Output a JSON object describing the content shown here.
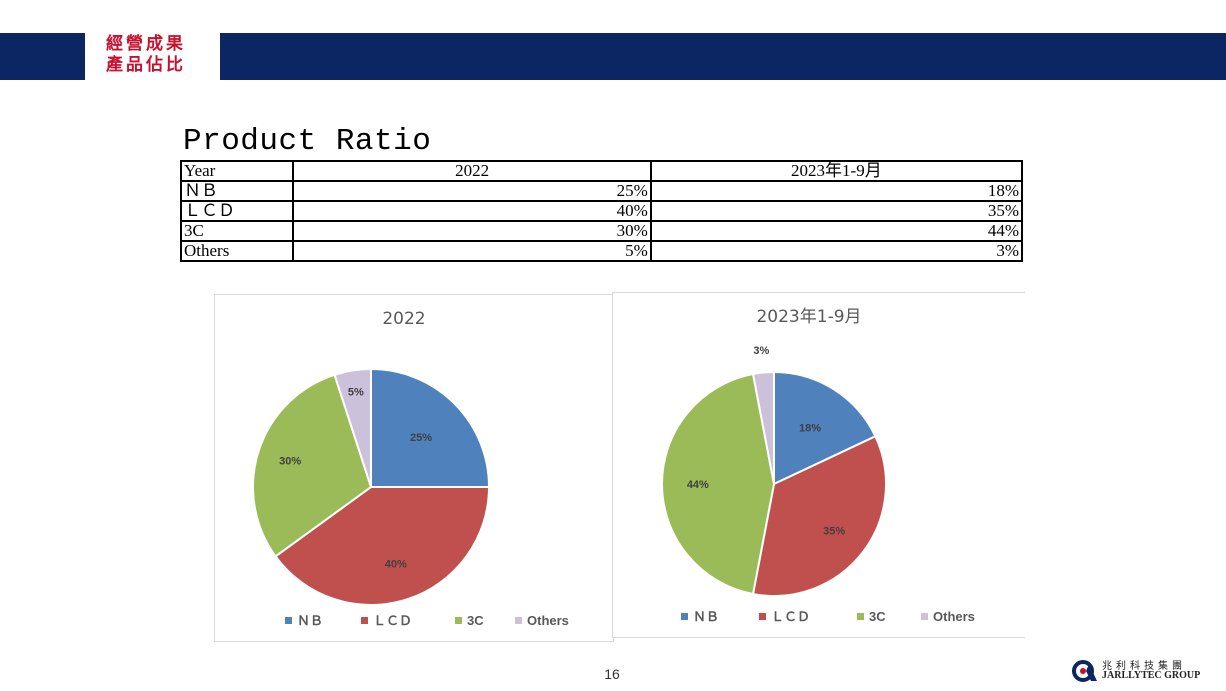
{
  "banner": {
    "line1": "經營成果",
    "line2": "產品佔比"
  },
  "heading": "Product  Ratio",
  "table": {
    "header": [
      "Year",
      "2022",
      "2023年1-9月"
    ],
    "rows": [
      [
        "ＮＢ",
        "25%",
        "18%"
      ],
      [
        "ＬＣＤ",
        "40%",
        "35%"
      ],
      [
        "3C",
        "30%",
        "44%"
      ],
      [
        "Others",
        "5%",
        "3%"
      ]
    ]
  },
  "colors": {
    "banner": "#0b2662",
    "banner_text": "#c8102e",
    "nb": "#4f81bd",
    "lcd": "#c0504d",
    "c3": "#9bbb59",
    "others": "#ccc1da"
  },
  "chart_data": [
    {
      "type": "pie",
      "title": "2022",
      "categories": [
        "ＮＢ",
        "ＬＣＤ",
        "3C",
        "Others"
      ],
      "values": [
        25,
        40,
        30,
        5
      ],
      "labels": [
        "25%",
        "40%",
        "30%",
        "5%"
      ],
      "legend": "bottom"
    },
    {
      "type": "pie",
      "title": "2023年1-9月",
      "categories": [
        "ＮＢ",
        "ＬＣＤ",
        "3C",
        "Others"
      ],
      "values": [
        18,
        35,
        44,
        3
      ],
      "labels": [
        "18%",
        "35%",
        "44%",
        "3%"
      ],
      "legend": "bottom"
    }
  ],
  "page_number": "16",
  "logo": {
    "name_cn": "兆利科技集團",
    "name_en": "JARLLYTEC GROUP"
  }
}
